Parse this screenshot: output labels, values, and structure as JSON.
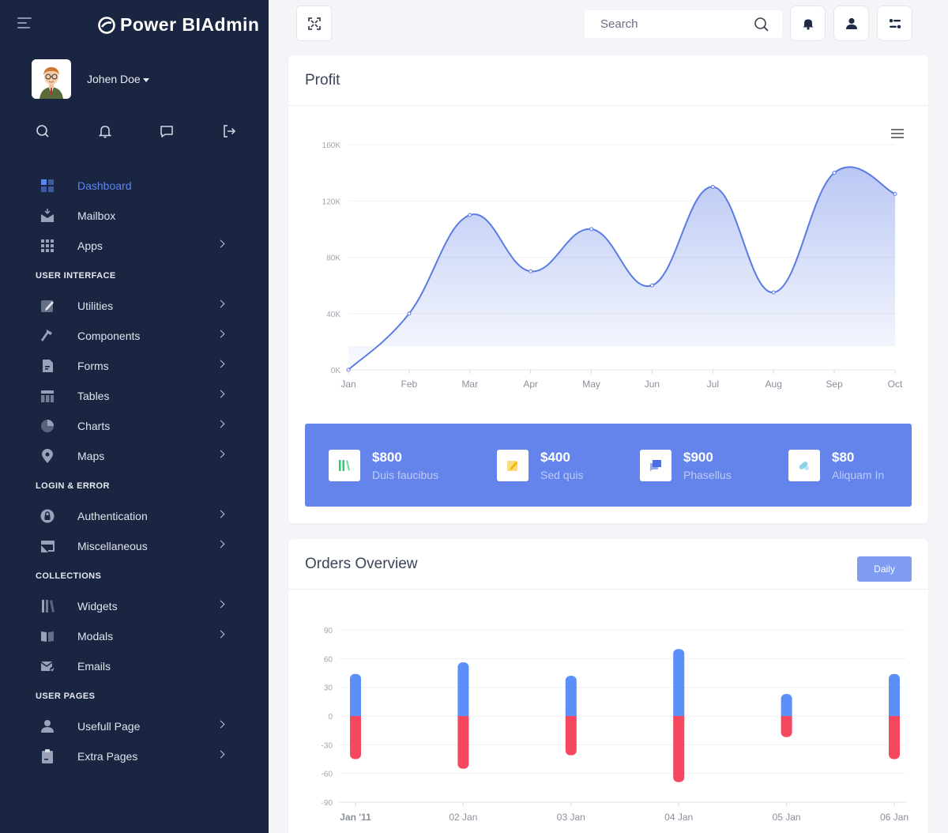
{
  "app": {
    "brand": "Power BIAdmin"
  },
  "user": {
    "name": "Johen Doe"
  },
  "sidebar": {
    "menu": [
      {
        "type": "item",
        "label": "Dashboard",
        "icon": "dashboard-icon",
        "active": true,
        "chevron": false
      },
      {
        "type": "item",
        "label": "Mailbox",
        "icon": "mailbox-icon",
        "chevron": false
      },
      {
        "type": "item",
        "label": "Apps",
        "icon": "apps-grid-icon",
        "chevron": true
      },
      {
        "type": "section",
        "label": "USER INTERFACE"
      },
      {
        "type": "item",
        "label": "Utilities",
        "icon": "edit-icon",
        "chevron": true
      },
      {
        "type": "item",
        "label": "Components",
        "icon": "hammer-icon",
        "chevron": true
      },
      {
        "type": "item",
        "label": "Forms",
        "icon": "document-icon",
        "chevron": true
      },
      {
        "type": "item",
        "label": "Tables",
        "icon": "table-icon",
        "chevron": true
      },
      {
        "type": "item",
        "label": "Charts",
        "icon": "pie-chart-icon",
        "chevron": true
      },
      {
        "type": "item",
        "label": "Maps",
        "icon": "map-pin-icon",
        "chevron": true
      },
      {
        "type": "section",
        "label": "LOGIN & ERROR"
      },
      {
        "type": "item",
        "label": "Authentication",
        "icon": "lock-icon",
        "chevron": true
      },
      {
        "type": "item",
        "label": "Miscellaneous",
        "icon": "cast-icon",
        "chevron": true
      },
      {
        "type": "section",
        "label": "COLLECTIONS"
      },
      {
        "type": "item",
        "label": "Widgets",
        "icon": "library-icon",
        "chevron": true
      },
      {
        "type": "item",
        "label": "Modals",
        "icon": "book-icon",
        "chevron": true
      },
      {
        "type": "item",
        "label": "Emails",
        "icon": "mail-send-icon",
        "chevron": false
      },
      {
        "type": "section",
        "label": "USER PAGES"
      },
      {
        "type": "item",
        "label": "Usefull Page",
        "icon": "user-icon",
        "chevron": true
      },
      {
        "type": "item",
        "label": "Extra Pages",
        "icon": "clipboard-icon",
        "chevron": true
      }
    ]
  },
  "topbar": {
    "search_placeholder": "Search"
  },
  "profit": {
    "title": "Profit",
    "stats": [
      {
        "value": "$800",
        "label": "Duis faucibus",
        "icon": "library-icon",
        "color": "#2ecc71"
      },
      {
        "value": "$400",
        "label": "Sed quis",
        "icon": "edit-icon",
        "color": "#f5b800"
      },
      {
        "value": "$900",
        "label": "Phasellus",
        "icon": "chat-icon",
        "color": "#4d6fe0"
      },
      {
        "value": "$80",
        "label": "Aliquam In",
        "icon": "pills-icon",
        "color": "#5bc0de"
      }
    ]
  },
  "orders": {
    "title": "Orders Overview",
    "button": "Daily"
  },
  "chart_data": [
    {
      "type": "area",
      "categories": [
        "Jan",
        "Feb",
        "Mar",
        "Apr",
        "May",
        "Jun",
        "Jul",
        "Aug",
        "Sep",
        "Oct"
      ],
      "values": [
        0,
        40000,
        110000,
        70000,
        100000,
        60000,
        130000,
        55000,
        140000,
        125000
      ],
      "yticks": [
        "0K",
        "40K",
        "80K",
        "120K",
        "160K"
      ],
      "ylim": [
        0,
        160000
      ],
      "color": "#5b7be4"
    },
    {
      "type": "bar",
      "categories": [
        "Jan '11",
        "02 Jan",
        "03 Jan",
        "04 Jan",
        "05 Jan",
        "06 Jan"
      ],
      "series": [
        {
          "values": [
            44,
            56,
            42,
            70,
            23,
            44
          ],
          "color": "#5b8ff9"
        },
        {
          "values": [
            -45,
            -55,
            -41,
            -69,
            -22,
            -45
          ],
          "color": "#f5475e"
        }
      ],
      "yticks": [
        "90",
        "60",
        "30",
        "0",
        "-30",
        "-60",
        "-90"
      ],
      "ylim": [
        -90,
        90
      ]
    }
  ]
}
